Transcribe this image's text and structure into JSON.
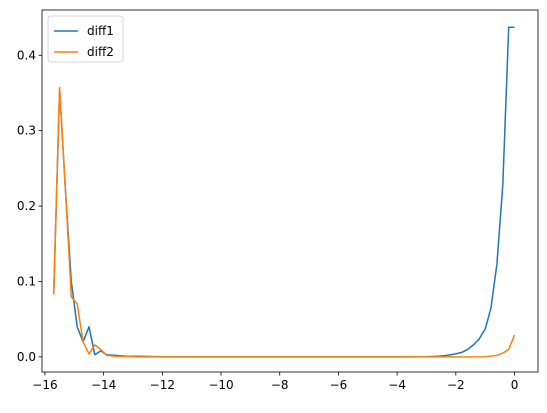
{
  "chart_data": {
    "type": "line",
    "title": "",
    "xlabel": "",
    "ylabel": "",
    "xlim": [
      -16.1,
      0.8
    ],
    "ylim": [
      -0.02,
      0.46
    ],
    "xticks": [
      -16,
      -14,
      -12,
      -10,
      -8,
      -6,
      -4,
      -2,
      0
    ],
    "yticks": [
      0.0,
      0.1,
      0.2,
      0.3,
      0.4
    ],
    "grid": false,
    "legend_position": "top-left",
    "series": [
      {
        "name": "diff1",
        "color": "#1f77b4",
        "x": [
          -15.7,
          -15.5,
          -15.3,
          -15.1,
          -14.9,
          -14.7,
          -14.5,
          -14.3,
          -14.1,
          -13.9,
          -13.6,
          -13.2,
          -12.8,
          -12,
          -10,
          -8,
          -6,
          -4,
          -3,
          -2.6,
          -2.3,
          -2.0,
          -1.8,
          -1.6,
          -1.4,
          -1.2,
          -1.0,
          -0.8,
          -0.6,
          -0.4,
          -0.2,
          0.0
        ],
        "y": [
          0.083,
          0.355,
          0.22,
          0.1,
          0.04,
          0.02,
          0.04,
          0.003,
          0.008,
          0.003,
          0.002,
          0.001,
          0.001,
          0.0,
          0.0,
          0.0,
          0.0,
          0.0,
          0.0003,
          0.0008,
          0.002,
          0.004,
          0.006,
          0.01,
          0.016,
          0.024,
          0.037,
          0.065,
          0.123,
          0.228,
          0.437,
          0.437
        ]
      },
      {
        "name": "diff2",
        "color": "#ff7f0e",
        "x": [
          -15.7,
          -15.5,
          -15.3,
          -15.1,
          -14.9,
          -14.7,
          -14.5,
          -14.3,
          -14.1,
          -13.9,
          -13.6,
          -13.2,
          -12.8,
          -12,
          -10,
          -8,
          -6,
          -4,
          -2,
          -1.0,
          -0.6,
          -0.4,
          -0.2,
          0.0
        ],
        "y": [
          0.083,
          0.357,
          0.22,
          0.08,
          0.07,
          0.02,
          0.004,
          0.016,
          0.01,
          0.002,
          0.001,
          0.0005,
          0.0,
          0.0,
          0.0,
          0.0,
          0.0,
          0.0,
          0.0,
          0.0003,
          0.002,
          0.005,
          0.01,
          0.029
        ]
      }
    ]
  }
}
